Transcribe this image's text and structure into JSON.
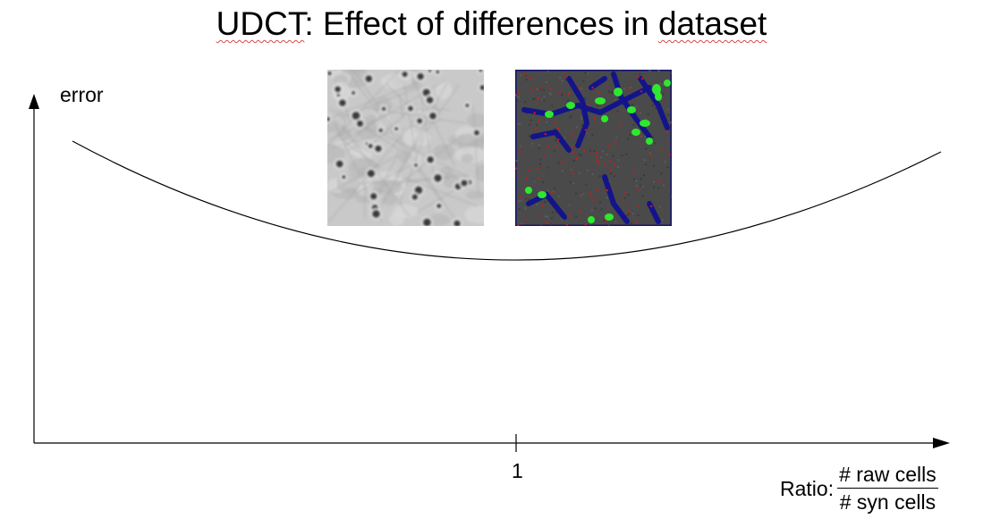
{
  "slide": {
    "title_prefix": "UDCT",
    "title_middle": ": Effect of differences in ",
    "title_suffix": "dataset"
  },
  "axes": {
    "y_label": "error",
    "x_tick": "1",
    "x_label_prefix": "Ratio:",
    "x_label_numerator": "# raw cells",
    "x_label_denominator": "# syn cells"
  },
  "images": {
    "raw": "grayscale-microscopy-cells-image",
    "synthetic": "synthetic-cells-image-green-blue-red"
  },
  "colors": {
    "text": "#000000",
    "spellcheck_underline": "#d44a4a",
    "syn_background": "#4a4a4a",
    "syn_cell_bodies": "#2ee82e",
    "syn_neurites": "#14148a",
    "syn_dots": "#d01818",
    "raw_background": "#c9c9c9"
  }
}
